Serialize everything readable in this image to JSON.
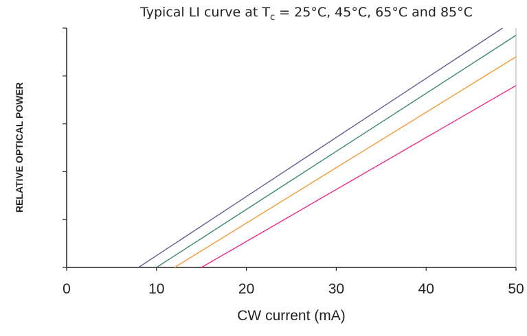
{
  "chart_data": {
    "type": "line",
    "title_prefix": "Typical LI curve at T",
    "title_subscript": "c",
    "title_suffix": " = 25°C, 45°C, 65°C and 85°C",
    "xlabel": "CW current (mA)",
    "ylabel": "RELATIVE OPTICAL POWER",
    "xlim": [
      0,
      50
    ],
    "ylim": [
      0,
      5
    ],
    "x_ticks": [
      "0",
      "10",
      "20",
      "30",
      "40",
      "50"
    ],
    "y_tick_count": 5,
    "legend": "none",
    "grid": false,
    "series": [
      {
        "color": "#6b5b95",
        "x": [
          8,
          48.5
        ],
        "y": [
          0,
          5
        ]
      },
      {
        "color": "#3a8a6a",
        "x": [
          10,
          50
        ],
        "y": [
          0,
          4.85
        ]
      },
      {
        "color": "#f39a36",
        "x": [
          12,
          50
        ],
        "y": [
          0,
          4.4
        ]
      },
      {
        "color": "#ee2a8c",
        "x": [
          15,
          50
        ],
        "y": [
          0,
          3.8
        ]
      }
    ]
  }
}
